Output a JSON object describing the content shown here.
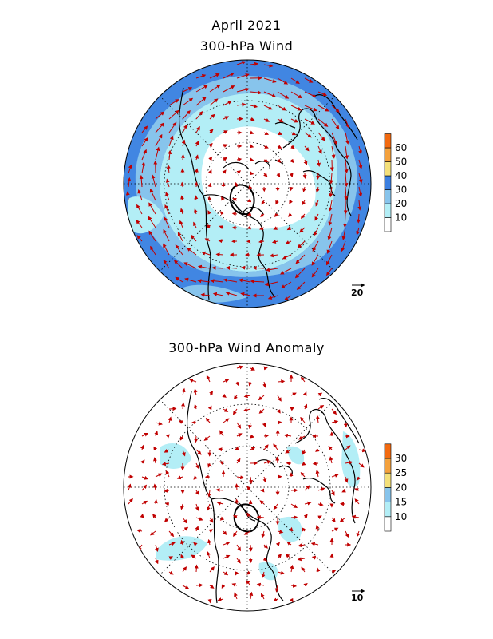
{
  "header": {
    "month_title": "April 2021",
    "top_title": "300-hPa Wind",
    "bottom_title": "300-hPa Wind Anomaly"
  },
  "top_map": {
    "colorbar": {
      "labels": [
        "10",
        "20",
        "30",
        "40",
        "50",
        "60"
      ],
      "colors": [
        "#ffffff",
        "#b3eef6",
        "#87c4ec",
        "#3b7fe0",
        "#f4e07a",
        "#f4a13c",
        "#f26a10"
      ]
    },
    "reference_vector": "20"
  },
  "bottom_map": {
    "colorbar": {
      "labels": [
        "10",
        "15",
        "20",
        "25",
        "30"
      ],
      "colors": [
        "#ffffff",
        "#b3eef6",
        "#87c4ec",
        "#f4e07a",
        "#f4a13c",
        "#f26a10"
      ]
    },
    "reference_vector": "10"
  },
  "style": {
    "vector_color": "#c00000",
    "coast_color": "#000000"
  }
}
